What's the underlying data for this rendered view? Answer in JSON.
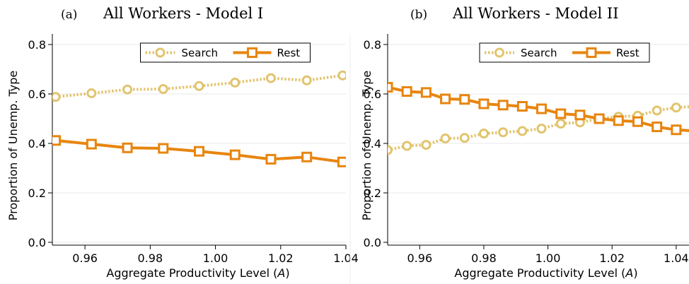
{
  "chart_data": [
    {
      "type": "line",
      "panel_tag": "(a)",
      "title": "All Workers - Model I",
      "xlabel": "Aggregate Productivity Level (",
      "xlabel_var": "A",
      "xlabel_end": ")",
      "ylabel": "Proportion of Unemp. Type",
      "xlim": [
        0.95,
        1.04
      ],
      "ylim": [
        0.0,
        0.8
      ],
      "xticks": [
        "0.96",
        "0.98",
        "1.00",
        "1.02",
        "1.04"
      ],
      "yticks": [
        "0.0",
        "0.2",
        "0.4",
        "0.6",
        "0.8"
      ],
      "grid": true,
      "legend": "top-center",
      "series": [
        {
          "name": "Search",
          "color": "#e2c46e",
          "style": "dotted",
          "marker": "circle",
          "x": [
            0.951,
            0.962,
            0.973,
            0.984,
            0.995,
            1.006,
            1.017,
            1.028,
            1.039
          ],
          "values": [
            0.588,
            0.603,
            0.618,
            0.62,
            0.632,
            0.646,
            0.664,
            0.655,
            0.675
          ]
        },
        {
          "name": "Rest",
          "color": "#e8850e",
          "style": "solid",
          "marker": "square",
          "x": [
            0.951,
            0.962,
            0.973,
            0.984,
            0.995,
            1.006,
            1.017,
            1.028,
            1.039
          ],
          "values": [
            0.412,
            0.397,
            0.382,
            0.38,
            0.368,
            0.354,
            0.336,
            0.345,
            0.325
          ]
        }
      ]
    },
    {
      "type": "line",
      "panel_tag": "(b)",
      "title": "All Workers - Model II",
      "xlabel": "Aggregate Productivity Level (",
      "xlabel_var": "A",
      "xlabel_end": ")",
      "ylabel": "Proportion of Unemp. Type",
      "xlim": [
        0.95,
        1.044
      ],
      "ylim": [
        0.0,
        0.8
      ],
      "xticks": [
        "0.96",
        "0.98",
        "1.00",
        "1.02",
        "1.04"
      ],
      "yticks": [
        "0.0",
        "0.2",
        "0.4",
        "0.6",
        "0.8"
      ],
      "grid": true,
      "legend": "top-center",
      "series": [
        {
          "name": "Search",
          "color": "#e2c46e",
          "style": "dotted",
          "marker": "circle",
          "x": [
            0.95,
            0.956,
            0.962,
            0.968,
            0.974,
            0.98,
            0.986,
            0.992,
            0.998,
            1.004,
            1.01,
            1.016,
            1.022,
            1.028,
            1.034,
            1.04,
            1.046
          ],
          "values": [
            0.373,
            0.39,
            0.394,
            0.42,
            0.422,
            0.44,
            0.445,
            0.45,
            0.46,
            0.48,
            0.485,
            0.5,
            0.508,
            0.512,
            0.533,
            0.545,
            0.55
          ]
        },
        {
          "name": "Rest",
          "color": "#e8850e",
          "style": "solid",
          "marker": "square",
          "x": [
            0.95,
            0.956,
            0.962,
            0.968,
            0.974,
            0.98,
            0.986,
            0.992,
            0.998,
            1.004,
            1.01,
            1.016,
            1.022,
            1.028,
            1.034,
            1.04,
            1.046
          ],
          "values": [
            0.627,
            0.61,
            0.606,
            0.58,
            0.578,
            0.56,
            0.555,
            0.55,
            0.54,
            0.52,
            0.515,
            0.5,
            0.492,
            0.488,
            0.467,
            0.455,
            0.45
          ]
        }
      ]
    }
  ]
}
